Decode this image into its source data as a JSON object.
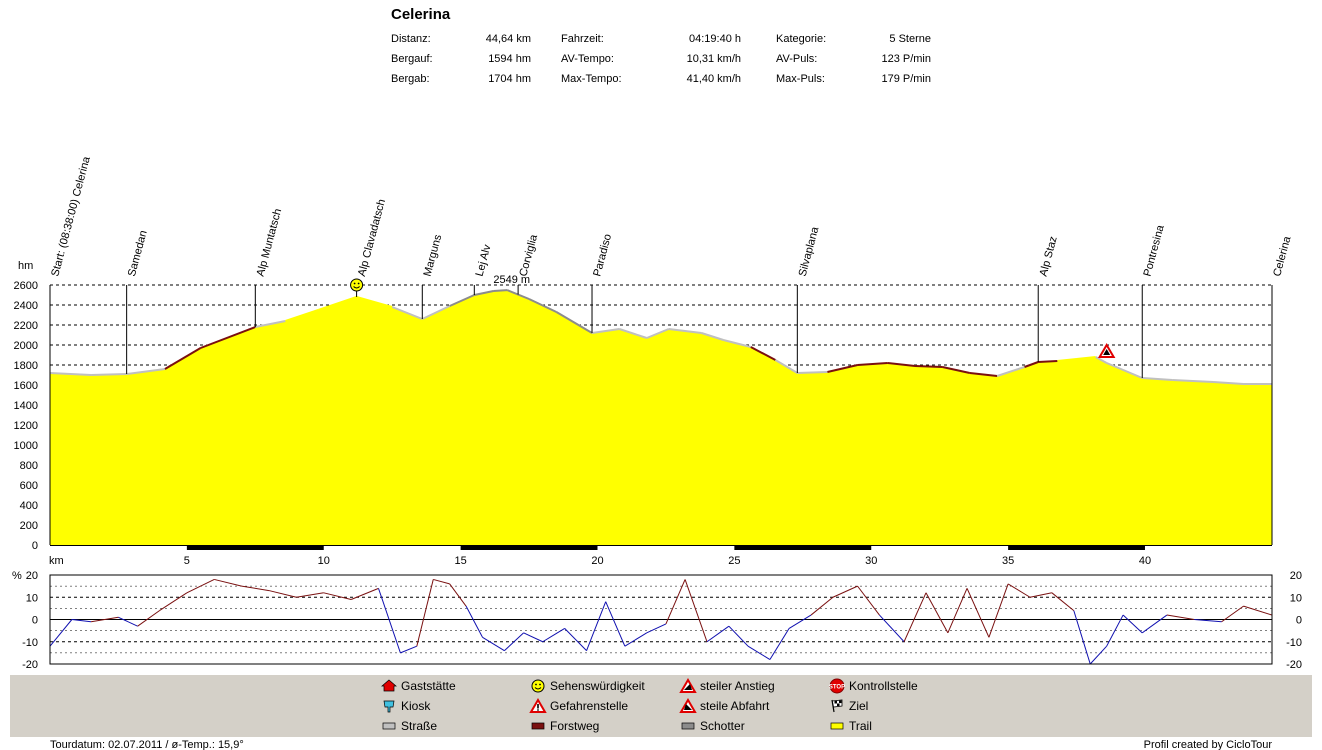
{
  "title": "Celerina",
  "stats": [
    [
      {
        "label": "Distanz:",
        "value": "44,64 km"
      },
      {
        "label": "Fahrzeit:",
        "value": "04:19:40 h"
      },
      {
        "label": "Kategorie:",
        "value": "5 Sterne"
      }
    ],
    [
      {
        "label": "Bergauf:",
        "value": "1594 hm"
      },
      {
        "label": "AV-Tempo:",
        "value": "10,31 km/h"
      },
      {
        "label": "AV-Puls:",
        "value": "123 P/min"
      }
    ],
    [
      {
        "label": "Bergab:",
        "value": "1704 hm"
      },
      {
        "label": "Max-Tempo:",
        "value": "41,40 km/h"
      },
      {
        "label": "Max-Puls:",
        "value": "179 P/min"
      }
    ]
  ],
  "legend": [
    [
      {
        "icon": "restaurant-icon",
        "label": "Gaststätte"
      },
      {
        "icon": "kiosk-icon",
        "label": "Kiosk"
      },
      {
        "icon": "road-swatch",
        "label": "Straße"
      }
    ],
    [
      {
        "icon": "smiley-icon",
        "label": "Sehenswürdigkeit"
      },
      {
        "icon": "danger-icon",
        "label": "Gefahrenstelle"
      },
      {
        "icon": "forest-road-swatch",
        "label": "Forstweg"
      }
    ],
    [
      {
        "icon": "steep-climb-icon",
        "label": "steiler Anstieg"
      },
      {
        "icon": "steep-descent-icon",
        "label": "steile Abfahrt"
      },
      {
        "icon": "gravel-swatch",
        "label": "Schotter"
      }
    ],
    [
      {
        "icon": "stop-icon",
        "label": "Kontrollstelle"
      },
      {
        "icon": "finish-flag-icon",
        "label": "Ziel"
      },
      {
        "icon": "trail-swatch",
        "label": "Trail"
      }
    ]
  ],
  "footer": {
    "left": "Tourdatum: 02.07.2011  /  ø-Temp.: 15,9°",
    "right": "Profil created by CicloTour"
  },
  "colors": {
    "fill": "#ffff00",
    "road": "#c0c0c0",
    "forest_road": "#7a1010",
    "gravel": "#8c8c8c",
    "trail": "#ffff00",
    "climb": "#7a1010",
    "descent": "#1010b0",
    "legend_bg": "#d4d0c8"
  },
  "chart_data": [
    {
      "type": "area",
      "ylabel": "hm",
      "xlabel": "km",
      "xlim": [
        0,
        44.64
      ],
      "ylim": [
        0,
        2600
      ],
      "x_ticks": [
        5,
        10,
        15,
        20,
        25,
        30,
        35,
        40
      ],
      "y_ticks": [
        0,
        200,
        400,
        600,
        800,
        1000,
        1200,
        1400,
        1600,
        1800,
        2000,
        2200,
        2400,
        2600
      ],
      "grid": true,
      "annotations": [
        {
          "x": 17.0,
          "y": 2549,
          "text": "2549 m"
        }
      ],
      "waypoints": [
        {
          "km": 0,
          "name": "Start: (08:38:00) Celerina"
        },
        {
          "km": 2.8,
          "name": "Samedan"
        },
        {
          "km": 7.5,
          "name": "Alp Muntatsch"
        },
        {
          "km": 11.2,
          "name": "Alp Clavadatsch"
        },
        {
          "km": 13.6,
          "name": "Marguns"
        },
        {
          "km": 15.5,
          "name": "Lej Alv"
        },
        {
          "km": 17.1,
          "name": "Corviglia"
        },
        {
          "km": 19.8,
          "name": "Paradiso"
        },
        {
          "km": 27.3,
          "name": "Silvaplana"
        },
        {
          "km": 36.1,
          "name": "Alp Staz"
        },
        {
          "km": 39.9,
          "name": "Pontresina"
        },
        {
          "km": 44.64,
          "name": "Celerina"
        }
      ],
      "markers": [
        {
          "km": 11.2,
          "icon": "smiley-icon"
        },
        {
          "km": 38.6,
          "icon": "steep-climb-icon"
        }
      ],
      "x": [
        0,
        1.5,
        2.8,
        4.2,
        5.5,
        7.5,
        8.6,
        9.8,
        11.2,
        12.5,
        13.6,
        14.6,
        15.5,
        16.2,
        16.7,
        17.5,
        18.5,
        19.8,
        20.8,
        21.8,
        22.6,
        23.8,
        24.6,
        25.6,
        26.5,
        27.3,
        28.4,
        29.5,
        30.6,
        31.6,
        32.6,
        33.6,
        34.6,
        35.6,
        36.1,
        36.8,
        37.5,
        38.2,
        38.6,
        39.9,
        41.0,
        42.5,
        43.6,
        44.64
      ],
      "values": [
        1720,
        1700,
        1710,
        1760,
        1970,
        2180,
        2240,
        2350,
        2480,
        2380,
        2260,
        2390,
        2500,
        2540,
        2549,
        2460,
        2330,
        2120,
        2160,
        2070,
        2160,
        2120,
        2050,
        1980,
        1850,
        1720,
        1730,
        1800,
        1820,
        1790,
        1780,
        1720,
        1690,
        1780,
        1830,
        1840,
        1860,
        1880,
        1820,
        1670,
        1650,
        1630,
        1610,
        1610
      ]
    },
    {
      "type": "line",
      "ylabel": "%",
      "ylim": [
        -20,
        20
      ],
      "y_ticks": [
        20,
        10,
        0,
        -10,
        -20
      ],
      "grid": true,
      "series": [
        {
          "name": "",
          "x": [
            0,
            0.8,
            1.5,
            2.5,
            3.2,
            4.0,
            5.0,
            6.0,
            7.0,
            8.0,
            9.0,
            10.0,
            11.0,
            12.0,
            12.8,
            13.4,
            14.0,
            14.6,
            15.2,
            15.8,
            16.6,
            17.3,
            18.0,
            18.8,
            19.6,
            20.3,
            21.0,
            21.8,
            22.5,
            23.2,
            24.0,
            24.8,
            25.5,
            26.3,
            27.0,
            27.8,
            28.6,
            29.5,
            30.3,
            31.2,
            32.0,
            32.8,
            33.5,
            34.3,
            35.0,
            35.8,
            36.6,
            37.4,
            38.0,
            38.6,
            39.2,
            39.9,
            40.8,
            41.8,
            42.8,
            43.6,
            44.64
          ],
          "values": [
            -12,
            0,
            -1,
            1,
            -3,
            4,
            12,
            18,
            15,
            13,
            10,
            12,
            9,
            14,
            -15,
            -12,
            18,
            16,
            6,
            -8,
            -14,
            -6,
            -10,
            -4,
            -14,
            8,
            -12,
            -6,
            -2,
            18,
            -10,
            -3,
            -12,
            -18,
            -4,
            2,
            10,
            15,
            2,
            -10,
            12,
            -6,
            14,
            -8,
            16,
            10,
            12,
            4,
            -20,
            -12,
            2,
            -6,
            2,
            0,
            -1,
            6,
            2
          ]
        }
      ]
    }
  ]
}
